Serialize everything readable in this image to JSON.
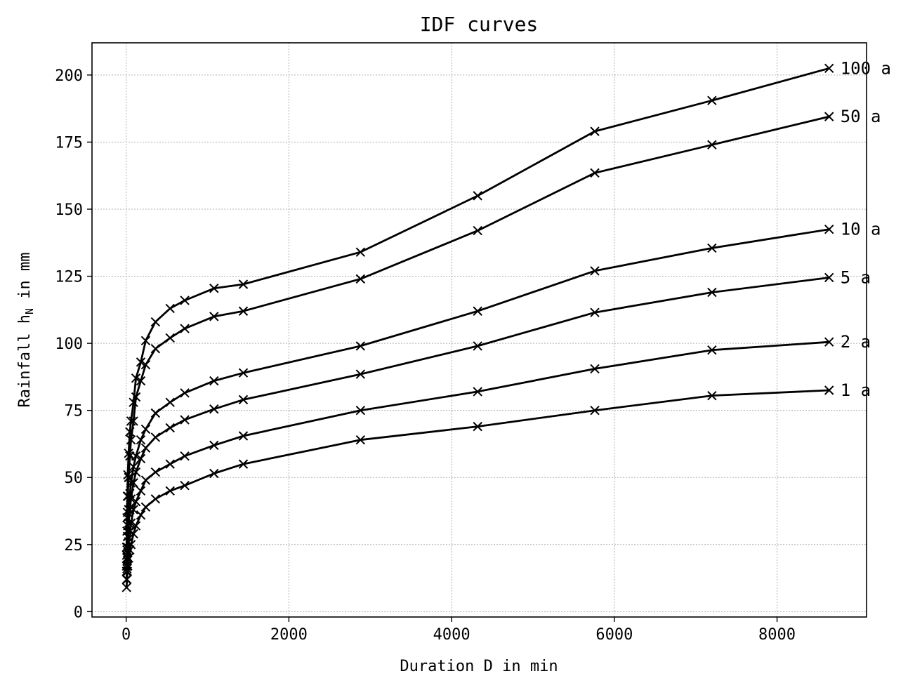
{
  "chart_data": {
    "type": "line",
    "title": "IDF curves",
    "xlabel": "Duration D in min",
    "ylabel_main": "Rainfall h",
    "ylabel_sub": "N",
    "ylabel_tail": " in mm",
    "xlim": [
      -420,
      9100
    ],
    "ylim": [
      -2,
      212
    ],
    "xticks": [
      0,
      2000,
      4000,
      6000,
      8000
    ],
    "yticks": [
      0,
      25,
      50,
      75,
      100,
      125,
      150,
      175,
      200
    ],
    "grid": true,
    "marker": "x",
    "color": "#000000",
    "x": [
      5,
      10,
      15,
      20,
      30,
      45,
      60,
      90,
      120,
      180,
      240,
      360,
      540,
      720,
      1080,
      1440,
      2880,
      4320,
      5760,
      7200,
      8640
    ],
    "series": [
      {
        "name": "1 a",
        "values": [
          9,
          12,
          15,
          17,
          20,
          23,
          25,
          29,
          32,
          36,
          39,
          42,
          45,
          47,
          51.5,
          55,
          64,
          69,
          75,
          80.5,
          82.5
        ]
      },
      {
        "name": "2 a",
        "values": [
          12,
          16,
          19,
          22,
          26,
          30,
          33,
          38,
          41,
          45,
          49,
          52,
          55,
          58,
          62,
          65.5,
          75,
          82,
          90.5,
          97.5,
          100.5
        ]
      },
      {
        "name": "5 a",
        "values": [
          15,
          20,
          24,
          28,
          33,
          38,
          42,
          48,
          52,
          57,
          61,
          65,
          68.5,
          71.5,
          75.5,
          79,
          88.5,
          99,
          111.5,
          119,
          124.5
        ]
      },
      {
        "name": "10 a",
        "values": [
          17,
          23,
          28,
          32,
          38,
          44,
          48,
          54,
          58,
          64,
          68,
          74,
          78,
          81.5,
          86,
          89,
          99,
          112,
          127,
          135.5,
          142.5
        ]
      },
      {
        "name": "50 a",
        "values": [
          21,
          30,
          37,
          43,
          50,
          58,
          64,
          71,
          80,
          86,
          92,
          98,
          102,
          105.5,
          110,
          112,
          124,
          142,
          163.5,
          174,
          184.5
        ]
      },
      {
        "name": "100 a",
        "values": [
          24,
          35,
          43,
          51,
          59,
          67,
          71,
          78,
          87,
          93,
          101,
          108,
          113,
          116,
          120.5,
          122,
          134,
          155,
          179,
          190.5,
          202.5
        ]
      }
    ]
  }
}
